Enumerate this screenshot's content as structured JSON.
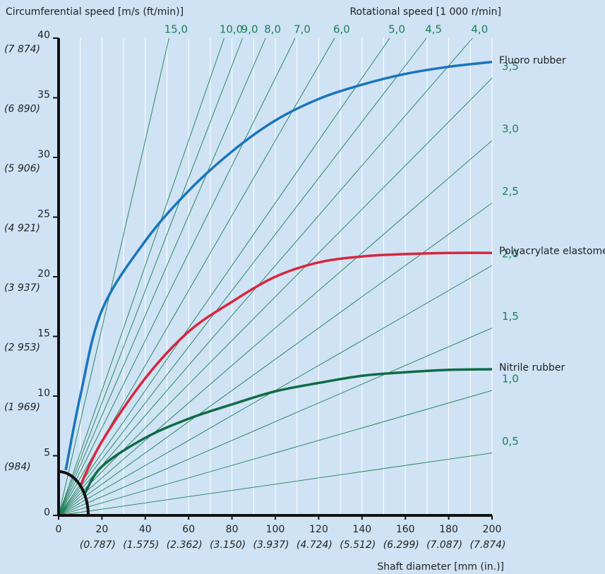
{
  "chart_data": {
    "type": "line",
    "y_title": "Circumferential speed [m/s (ft/min)]",
    "speed_title": "Rotational speed [1 000 r/min]",
    "x_title": "Shaft diameter [mm (in.)]",
    "xlim": [
      0,
      200
    ],
    "ylim": [
      0,
      40
    ],
    "xticks": [
      0,
      20,
      40,
      60,
      80,
      100,
      120,
      140,
      160,
      180,
      200
    ],
    "xtick_alt_labels": [
      null,
      "(0.787)",
      "(1.575)",
      "(2.362)",
      "(3.150)",
      "(3.937)",
      "(4.724)",
      "(5.512)",
      "(6.299)",
      "(7.087)",
      "(7.874)"
    ],
    "yticks": [
      0,
      5,
      10,
      15,
      20,
      25,
      30,
      35,
      40
    ],
    "ytick_alt_labels": [
      null,
      "(984)",
      "(1 969)",
      "(2 953)",
      "(3 937)",
      "(4 921)",
      "(5 906)",
      "(6 890)",
      "(7 874)"
    ],
    "x_grid": [
      10,
      20,
      30,
      40,
      50,
      60,
      70,
      80,
      90,
      100,
      110,
      120,
      130,
      140,
      150,
      160,
      170,
      180,
      190,
      200
    ],
    "speed_lines": [
      {
        "value": 0.5,
        "label": "0,5"
      },
      {
        "value": 1.0,
        "label": "1,0"
      },
      {
        "value": 1.5,
        "label": "1,5"
      },
      {
        "value": 2.0,
        "label": "2,0"
      },
      {
        "value": 2.5,
        "label": "2,5"
      },
      {
        "value": 3.0,
        "label": "3,0"
      },
      {
        "value": 3.5,
        "label": "3,5"
      },
      {
        "value": 4.0,
        "label": "4,0"
      },
      {
        "value": 4.5,
        "label": "4,5"
      },
      {
        "value": 5.0,
        "label": "5,0"
      },
      {
        "value": 6.0,
        "label": "6,0"
      },
      {
        "value": 7.0,
        "label": "7,0"
      },
      {
        "value": 8.0,
        "label": "8,0"
      },
      {
        "value": 9.0,
        "label": "9,0"
      },
      {
        "value": 10.0,
        "label": "10,0"
      },
      {
        "value": 15.0,
        "label": "15,0"
      }
    ],
    "speed_line_color": "#1b7f55",
    "series": [
      {
        "name": "Fluoro rubber",
        "color": "#1a74bb",
        "x": [
          3.3,
          10,
          20,
          40,
          60,
          80,
          100,
          120,
          140,
          160,
          180,
          200
        ],
        "values": [
          3.8,
          10,
          17.2,
          23,
          27.2,
          30.5,
          33.1,
          34.9,
          36.1,
          37,
          37.6,
          38
        ]
      },
      {
        "name": "Polyacrylate elastomer",
        "color": "#d7263d",
        "x": [
          9.8,
          20,
          40,
          60,
          80,
          100,
          120,
          140,
          160,
          180,
          200
        ],
        "values": [
          2.4,
          6.2,
          11.5,
          15.4,
          17.9,
          20,
          21.2,
          21.7,
          21.9,
          22,
          22
        ]
      },
      {
        "name": "Nitrile rubber",
        "color": "#0f6b45",
        "x": [
          12,
          20,
          40,
          60,
          80,
          100,
          120,
          140,
          160,
          180,
          200
        ],
        "values": [
          1.8,
          4.1,
          6.5,
          8.1,
          9.3,
          10.4,
          11.1,
          11.7,
          12,
          12.2,
          12.25
        ]
      }
    ]
  }
}
